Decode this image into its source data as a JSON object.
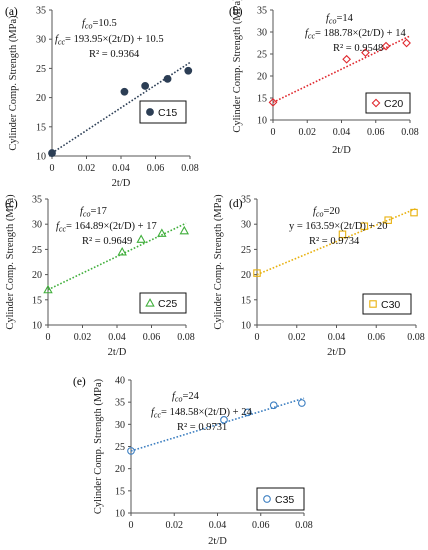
{
  "chart_data": [
    {
      "type": "scatter",
      "panel_label": "(a)",
      "xlabel": "2t/D",
      "ylabel": "Cylinder Comp. Strength (MPa)",
      "xlim": [
        0,
        0.08
      ],
      "ylim": [
        10,
        35
      ],
      "xticks": [
        "0",
        "0.02",
        "0.04",
        "0.06",
        "0.08"
      ],
      "yticks": [
        "10",
        "15",
        "20",
        "25",
        "30",
        "35"
      ],
      "series": [
        {
          "name": "C15",
          "color": "#2c3e55",
          "marker": "filled-circle",
          "x": [
            0,
            0.042,
            0.054,
            0.067,
            0.079
          ],
          "y": [
            10.5,
            21.0,
            22.0,
            23.2,
            24.6
          ]
        }
      ],
      "fit": {
        "slope": 193.95,
        "intercept": 10.5,
        "color": "#2c3e55"
      },
      "annotation": {
        "fco": "f co=10.5",
        "eq": "f cc= 193.95×(2t/D) + 10.5",
        "r2": "R² = 0.9364"
      }
    },
    {
      "type": "scatter",
      "panel_label": "(b)",
      "xlabel": "2t/D",
      "ylabel": "Cylinder Comp. Strength (MPa)",
      "xlim": [
        0,
        0.08
      ],
      "ylim": [
        10,
        35
      ],
      "xticks": [
        "0",
        "0.02",
        "0.04",
        "0.06",
        "0.08"
      ],
      "yticks": [
        "10",
        "15",
        "20",
        "25",
        "30",
        "35"
      ],
      "series": [
        {
          "name": "C20",
          "color": "#e0282e",
          "marker": "diamond",
          "x": [
            0,
            0.043,
            0.054,
            0.066,
            0.078
          ],
          "y": [
            14.0,
            23.8,
            25.3,
            26.8,
            27.5
          ]
        }
      ],
      "fit": {
        "slope": 188.78,
        "intercept": 14,
        "color": "#e0282e"
      },
      "annotation": {
        "fco": "f co=14",
        "eq": "f cc= 188.78×(2t/D) + 14",
        "r2": "R² = 0.9548"
      }
    },
    {
      "type": "scatter",
      "panel_label": "(c)",
      "xlabel": "2t/D",
      "ylabel": "Cylinder Comp. Strength (MPa)",
      "xlim": [
        0,
        0.08
      ],
      "ylim": [
        10,
        35
      ],
      "xticks": [
        "0",
        "0.02",
        "0.04",
        "0.06",
        "0.08"
      ],
      "yticks": [
        "10",
        "15",
        "20",
        "25",
        "30",
        "35"
      ],
      "series": [
        {
          "name": "C25",
          "color": "#3fae3a",
          "marker": "triangle",
          "x": [
            0,
            0.043,
            0.054,
            0.066,
            0.079
          ],
          "y": [
            17.0,
            24.5,
            27.0,
            28.2,
            28.7
          ]
        }
      ],
      "fit": {
        "slope": 164.89,
        "intercept": 17,
        "color": "#3fae3a"
      },
      "annotation": {
        "fco": "f co=17",
        "eq": "f cc= 164.89×(2t/D) + 17",
        "r2": "R² = 0.9649"
      }
    },
    {
      "type": "scatter",
      "panel_label": "(d)",
      "xlabel": "2t/D",
      "ylabel": "Cylinder Comp. Strength (MPa)",
      "xlim": [
        0,
        0.08
      ],
      "ylim": [
        10,
        35
      ],
      "xticks": [
        "0",
        "0.02",
        "0.04",
        "0.06",
        "0.08"
      ],
      "yticks": [
        "10",
        "15",
        "20",
        "25",
        "30",
        "35"
      ],
      "series": [
        {
          "name": "C30",
          "color": "#e8b10e",
          "marker": "square",
          "x": [
            0,
            0.043,
            0.054,
            0.066,
            0.079
          ],
          "y": [
            20.3,
            28.0,
            29.6,
            30.8,
            32.3
          ]
        }
      ],
      "fit": {
        "slope": 163.59,
        "intercept": 20,
        "color": "#e8b10e"
      },
      "annotation": {
        "fco": "f co=20",
        "eq": "y = 163.59×(2t/D) + 20",
        "r2": "R² = 0.9734"
      }
    },
    {
      "type": "scatter",
      "panel_label": "(e)",
      "xlabel": "2t/D",
      "ylabel": "Cylinder Comp. Strength (MPa)",
      "xlim": [
        0,
        0.08
      ],
      "ylim": [
        10,
        40
      ],
      "xticks": [
        "0",
        "0.02",
        "0.04",
        "0.06",
        "0.08"
      ],
      "yticks": [
        "10",
        "15",
        "20",
        "25",
        "30",
        "35",
        "40"
      ],
      "series": [
        {
          "name": "C35",
          "color": "#3d7fc1",
          "marker": "circle",
          "x": [
            0,
            0.043,
            0.054,
            0.066,
            0.079
          ],
          "y": [
            24.0,
            31.0,
            32.7,
            34.3,
            34.8
          ]
        }
      ],
      "fit": {
        "slope": 148.58,
        "intercept": 24,
        "color": "#3d7fc1"
      },
      "annotation": {
        "fco": "f co=24",
        "eq": "f cc= 148.58×(2t/D) + 24",
        "r2": "R² = 0.9731"
      }
    }
  ]
}
